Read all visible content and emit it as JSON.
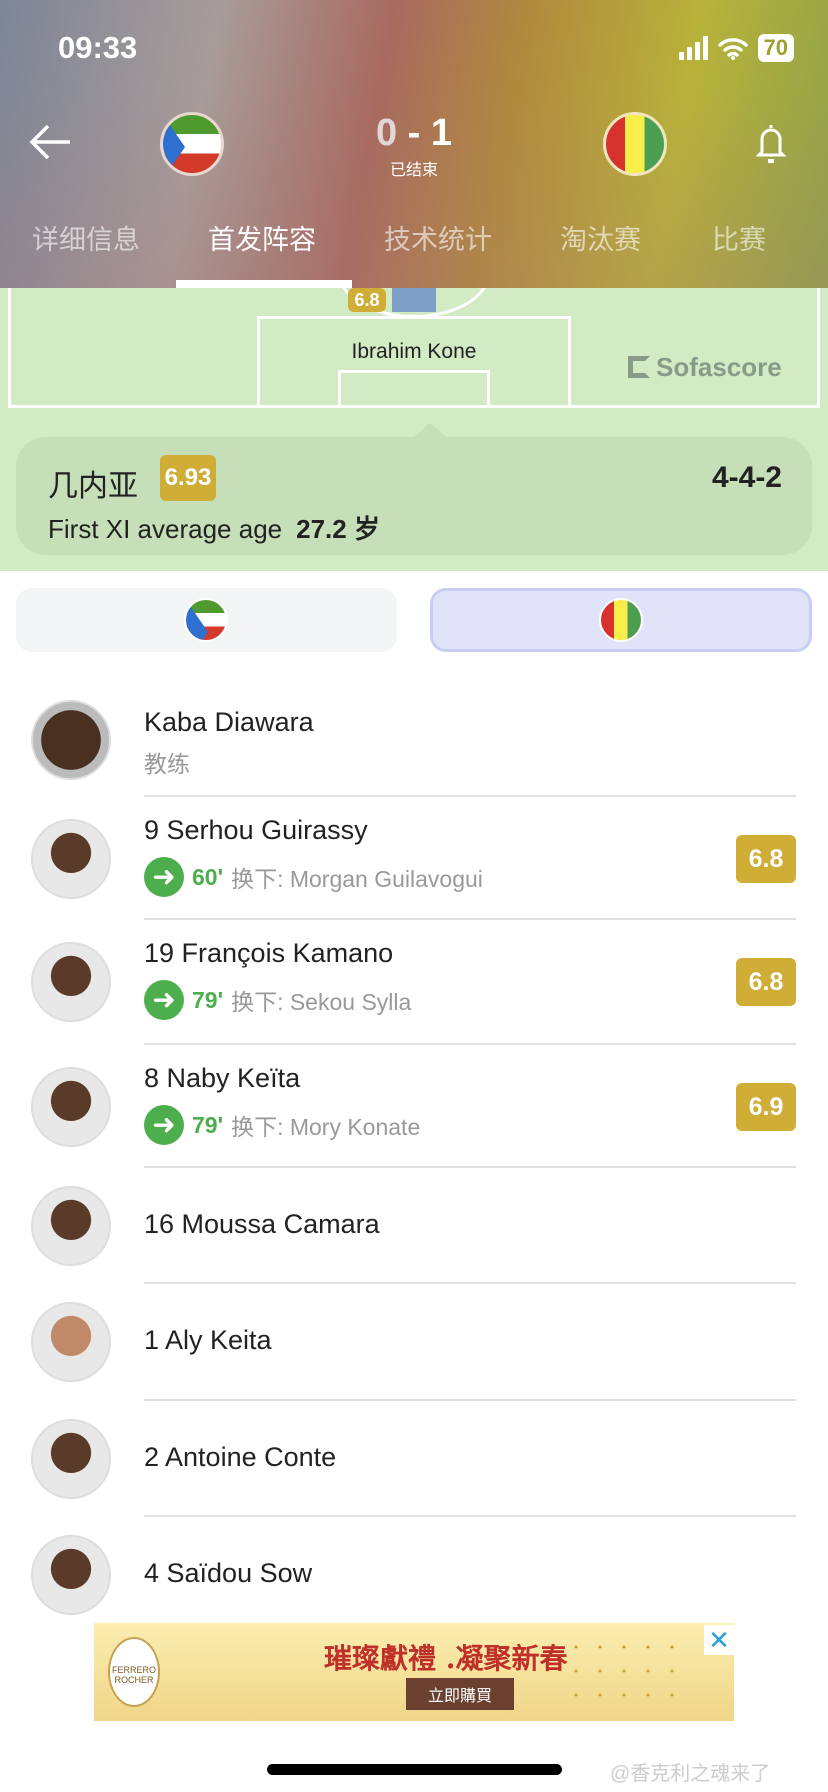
{
  "status_bar": {
    "time": "09:33",
    "battery": "70"
  },
  "match": {
    "home_score": "0",
    "separator": "-",
    "away_score": "1",
    "status": "已结束"
  },
  "tabs": [
    "详细信息",
    "首发阵容",
    "技术统计",
    "淘汰赛",
    "比赛"
  ],
  "active_tab": "首发阵容",
  "pitch": {
    "player_rating": "6.8",
    "player_name": "Ibrahim Kone",
    "watermark": "Sofascore"
  },
  "team_card": {
    "name": "几内亚",
    "rating": "6.93",
    "formation": "4-4-2",
    "age_label": "First XI average age",
    "age_value": "27.2 岁"
  },
  "coach": {
    "name": "Kaba Diawara",
    "role": "教练"
  },
  "players": [
    {
      "name": "9 Serhou Guirassy",
      "sub_minute": "60'",
      "sub_text": "换下: Morgan Guilavogui",
      "rating": "6.8"
    },
    {
      "name": "19 François Kamano",
      "sub_minute": "79'",
      "sub_text": "换下: Sekou Sylla",
      "rating": "6.8"
    },
    {
      "name": "8 Naby Keïta",
      "sub_minute": "79'",
      "sub_text": "换下: Mory Konate",
      "rating": "6.9"
    },
    {
      "name": "16 Moussa Camara"
    },
    {
      "name": "1 Aly Keita"
    },
    {
      "name": "2 Antoine Conte"
    },
    {
      "name": "4 Saïdou Sow"
    }
  ],
  "ad": {
    "brand": "FERRERO ROCHER",
    "headline": "璀璨獻禮 .凝聚新春",
    "button": "立即購買",
    "close": "✕"
  },
  "watermark": "@香克利之魂来了",
  "colors": {
    "rating": "#cfad37",
    "sub_green": "#4cae4c",
    "pitch": "#d2ebc5",
    "selected_toggle": "#e1e4f8"
  }
}
